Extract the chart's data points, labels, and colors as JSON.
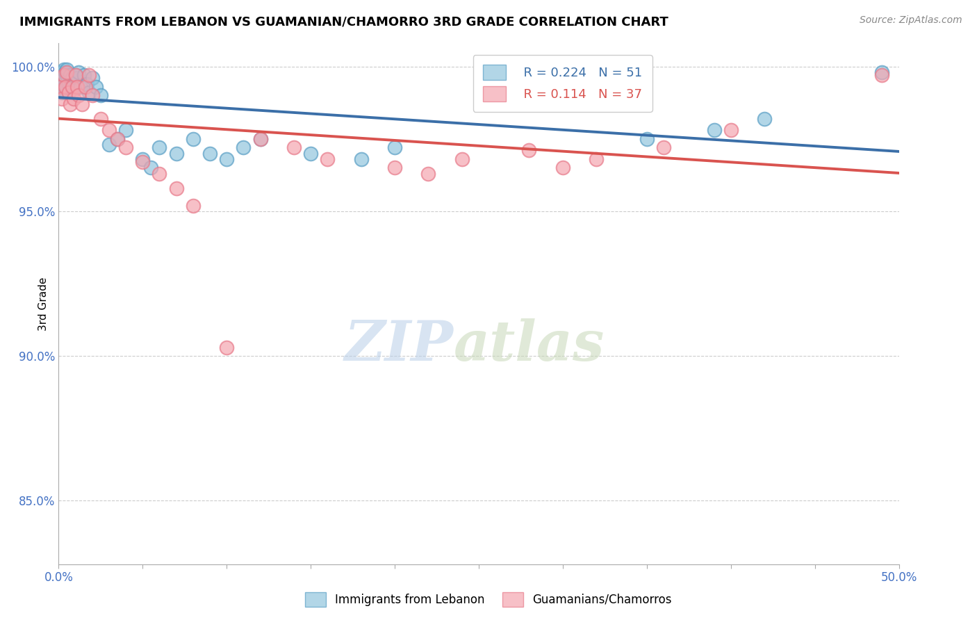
{
  "title": "IMMIGRANTS FROM LEBANON VS GUAMANIAN/CHAMORRO 3RD GRADE CORRELATION CHART",
  "source_text": "Source: ZipAtlas.com",
  "ylabel": "3rd Grade",
  "xlim": [
    0.0,
    0.5
  ],
  "ylim": [
    0.828,
    1.008
  ],
  "ytick_positions": [
    0.85,
    0.9,
    0.95,
    1.0
  ],
  "ytick_labels": [
    "85.0%",
    "90.0%",
    "95.0%",
    "100.0%"
  ],
  "blue_color": "#92c5de",
  "pink_color": "#f4a6b0",
  "blue_edge_color": "#5a9fc5",
  "pink_edge_color": "#e87a8a",
  "blue_line_color": "#3b6fa8",
  "pink_line_color": "#d9534f",
  "legend_R_blue": "R = 0.224",
  "legend_N_blue": "N = 51",
  "legend_R_pink": "R = 0.114",
  "legend_N_pink": "N = 37",
  "watermark_zip": "ZIP",
  "watermark_atlas": "atlas",
  "gridline_color": "#cccccc",
  "background_color": "#ffffff",
  "blue_scatter_x": [
    0.001,
    0.001,
    0.002,
    0.002,
    0.002,
    0.003,
    0.003,
    0.003,
    0.004,
    0.004,
    0.004,
    0.005,
    0.005,
    0.005,
    0.006,
    0.006,
    0.007,
    0.007,
    0.008,
    0.008,
    0.009,
    0.01,
    0.01,
    0.011,
    0.012,
    0.013,
    0.015,
    0.017,
    0.018,
    0.02,
    0.022,
    0.025,
    0.03,
    0.035,
    0.04,
    0.05,
    0.055,
    0.06,
    0.07,
    0.08,
    0.09,
    0.1,
    0.11,
    0.12,
    0.15,
    0.18,
    0.2,
    0.35,
    0.39,
    0.42,
    0.49
  ],
  "blue_scatter_y": [
    0.997,
    0.993,
    0.998,
    0.995,
    0.991,
    0.999,
    0.996,
    0.993,
    0.998,
    0.995,
    0.991,
    0.997,
    0.993,
    0.999,
    0.994,
    0.991,
    0.997,
    0.993,
    0.996,
    0.991,
    0.994,
    0.997,
    0.993,
    0.996,
    0.998,
    0.993,
    0.997,
    0.994,
    0.991,
    0.996,
    0.993,
    0.99,
    0.973,
    0.975,
    0.978,
    0.968,
    0.965,
    0.972,
    0.97,
    0.975,
    0.97,
    0.968,
    0.972,
    0.975,
    0.97,
    0.968,
    0.972,
    0.975,
    0.978,
    0.982,
    0.998
  ],
  "pink_scatter_x": [
    0.001,
    0.002,
    0.003,
    0.004,
    0.005,
    0.006,
    0.007,
    0.008,
    0.009,
    0.01,
    0.011,
    0.012,
    0.014,
    0.016,
    0.018,
    0.02,
    0.025,
    0.03,
    0.035,
    0.04,
    0.05,
    0.06,
    0.07,
    0.08,
    0.1,
    0.12,
    0.14,
    0.16,
    0.2,
    0.22,
    0.24,
    0.28,
    0.3,
    0.32,
    0.36,
    0.4,
    0.49
  ],
  "pink_scatter_y": [
    0.993,
    0.989,
    0.997,
    0.993,
    0.998,
    0.991,
    0.987,
    0.993,
    0.989,
    0.997,
    0.993,
    0.99,
    0.987,
    0.993,
    0.997,
    0.99,
    0.982,
    0.978,
    0.975,
    0.972,
    0.967,
    0.963,
    0.958,
    0.952,
    0.903,
    0.975,
    0.972,
    0.968,
    0.965,
    0.963,
    0.968,
    0.971,
    0.965,
    0.968,
    0.972,
    0.978,
    0.997
  ]
}
